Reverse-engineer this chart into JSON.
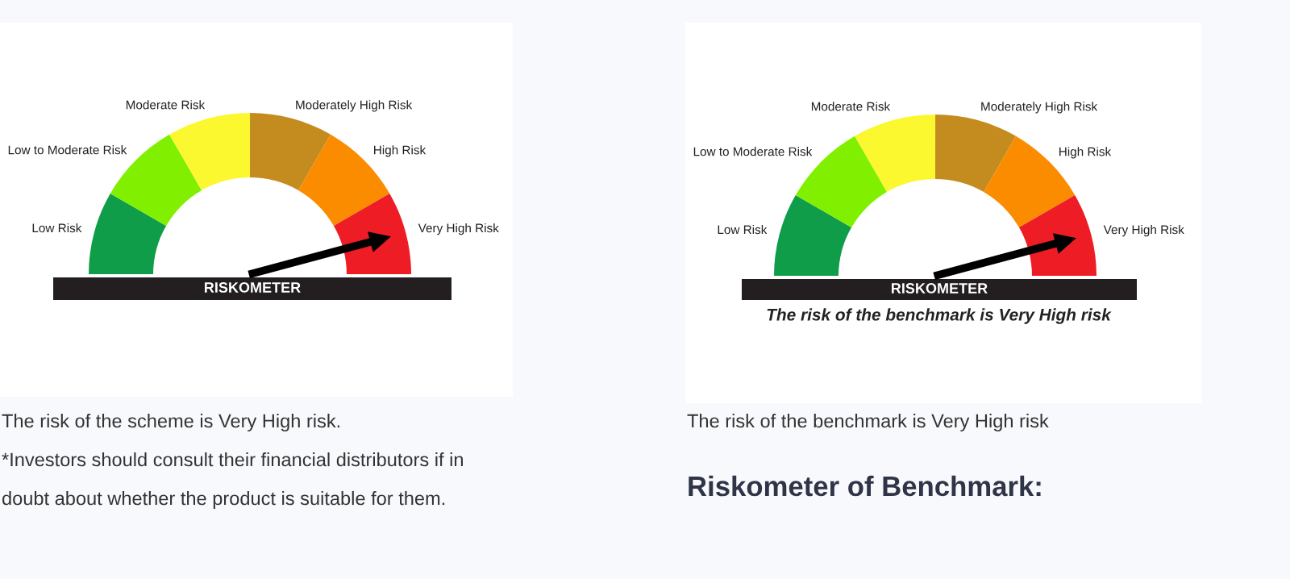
{
  "chart_data": [
    {
      "type": "donut",
      "categories": [
        "Low Risk",
        "Low to Moderate Risk",
        "Moderate Risk",
        "Moderately High Risk",
        "High Risk",
        "Very High Risk"
      ],
      "values": [
        16.67,
        16.67,
        16.67,
        16.67,
        16.66,
        16.66
      ],
      "colors": [
        "#0f9d4a",
        "#80f000",
        "#fbf830",
        "#c48b1f",
        "#fb8c00",
        "#ee1c25"
      ],
      "needle": "Very High Risk",
      "annotations": [
        "RISKOMETER",
        "The risk of the scheme is Very High risk.",
        "*Investors should consult their financial distributors if in",
        "doubt about whether the product is suitable for them."
      ]
    },
    {
      "type": "donut",
      "categories": [
        "Low Risk",
        "Low to Moderate Risk",
        "Moderate Risk",
        "Moderately High Risk",
        "High Risk",
        "Very High Risk"
      ],
      "values": [
        16.67,
        16.67,
        16.67,
        16.67,
        16.66,
        16.66
      ],
      "colors": [
        "#0f9d4a",
        "#80f000",
        "#fbf830",
        "#c48b1f",
        "#fb8c00",
        "#ee1c25"
      ],
      "needle": "Very High Risk",
      "annotations": [
        "RISKOMETER",
        "The risk of the benchmark is Very High risk",
        "The risk of the benchmark is Very High risk",
        "Riskometer of Benchmark:"
      ]
    }
  ]
}
